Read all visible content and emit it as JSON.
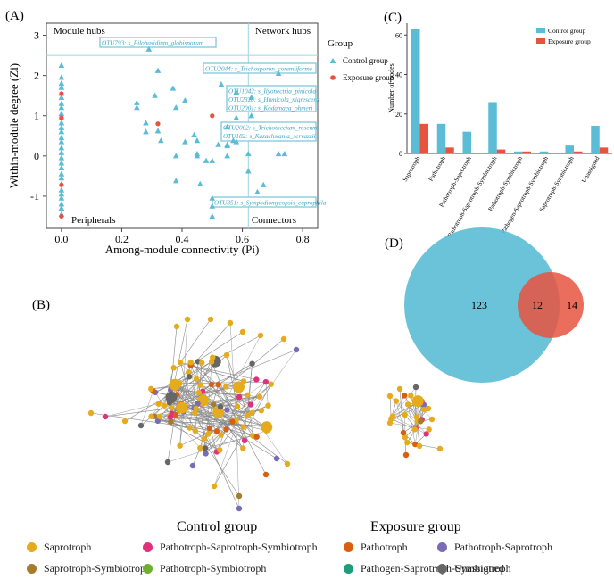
{
  "colors": {
    "control": "#5bbcd6",
    "exposure": "#e8533f",
    "frame": "#7fc8da",
    "saprotroph": "#e5ab1a",
    "pathotroph_saprotroph_symbiotroph": "#e0317c",
    "pathotroph": "#d95f0e",
    "pathotroph_saprotroph": "#7b6bb5",
    "saprotroph_symbiotroph": "#a67c2a",
    "pathotroph_symbiotroph": "#6fae2e",
    "pathogen_saprotroph_symbiotroph": "#1f9c7a",
    "unassigned": "#666666"
  },
  "panel_labels": {
    "a": "(A)",
    "b": "(B)",
    "c": "(C)",
    "d": "(D)"
  },
  "chart_data": [
    {
      "type": "scatter",
      "panel": "A",
      "xlabel": "Among-module connectivity (Pi)",
      "ylabel": "Within-module degree (Zi)",
      "xlim": [
        -0.05,
        0.85
      ],
      "ylim": [
        -1.8,
        3.3
      ],
      "xticks": [
        "0.0",
        "0.2",
        "0.4",
        "0.6",
        "0.8"
      ],
      "yticks": [
        "-1",
        "0",
        "1",
        "2",
        "3"
      ],
      "zi_threshold": 2.5,
      "pi_threshold": 0.62,
      "quadrant_labels": {
        "module_hubs": "Module hubs",
        "network_hubs": "Network hubs",
        "peripherals": "Peripherals",
        "connectors": "Connectors"
      },
      "legend_title": "Group",
      "legend_entries": [
        "Control group",
        "Exposure group"
      ],
      "annotations": [
        "OTU793: s_Filobasidium_globisporum",
        "OTU2044: s_Trichosporon_coremiiforme",
        "OTU1042: s_Ilyonectria_pinicola",
        "OTU2328: s_Humicola_nigrescens",
        "OTU2001: s_Kodamaea_ohmeri",
        "OTU2002: s_Trichothecium_roseum",
        "OTU182: s_Kazachstania_servazzii",
        "OTU851: s_Sympodiomycopsis_cuprophila"
      ],
      "series": [
        {
          "name": "Control group",
          "points": [
            [
              0,
              2.25
            ],
            [
              0,
              1.95
            ],
            [
              0,
              1.8
            ],
            [
              0,
              1.7
            ],
            [
              0,
              1.55
            ],
            [
              0,
              1.45
            ],
            [
              0,
              1.3
            ],
            [
              0,
              1.2
            ],
            [
              0,
              1.05
            ],
            [
              0,
              0.95
            ],
            [
              0,
              0.82
            ],
            [
              0,
              0.7
            ],
            [
              0,
              0.6
            ],
            [
              0,
              0.45
            ],
            [
              0,
              0.35
            ],
            [
              0,
              0.2
            ],
            [
              0,
              0.08
            ],
            [
              0,
              -0.05
            ],
            [
              0,
              -0.18
            ],
            [
              0,
              -0.3
            ],
            [
              0,
              -0.45
            ],
            [
              0,
              -0.55
            ],
            [
              0,
              -0.7
            ],
            [
              0,
              -0.85
            ],
            [
              0,
              -0.95
            ],
            [
              0,
              -1.05
            ],
            [
              0,
              -1.2
            ],
            [
              0,
              -1.3
            ],
            [
              0,
              -1.45
            ],
            [
              0.29,
              2.65
            ],
            [
              0.32,
              2.12
            ],
            [
              0.25,
              1.32
            ],
            [
              0.25,
              1.2
            ],
            [
              0.31,
              1.5
            ],
            [
              0.37,
              1.68
            ],
            [
              0.41,
              1.38
            ],
            [
              0.38,
              1.2
            ],
            [
              0.28,
              0.82
            ],
            [
              0.28,
              0.6
            ],
            [
              0.32,
              0.62
            ],
            [
              0.33,
              0.38
            ],
            [
              0.44,
              0.52
            ],
            [
              0.45,
              0.38
            ],
            [
              0.41,
              0.35
            ],
            [
              0.38,
              0.0
            ],
            [
              0.38,
              -0.62
            ],
            [
              0.46,
              -0.7
            ],
            [
              0.45,
              0.05
            ],
            [
              0.48,
              -0.12
            ],
            [
              0.5,
              -0.12
            ],
            [
              0.52,
              0.28
            ],
            [
              0.55,
              0.72
            ],
            [
              0.55,
              0.28
            ],
            [
              0.58,
              0.95
            ],
            [
              0.55,
              0.0
            ],
            [
              0.53,
              1.78
            ],
            [
              0.63,
              1.0
            ],
            [
              0.58,
              1.58
            ],
            [
              0.62,
              0.05
            ],
            [
              0.62,
              -0.38
            ],
            [
              0.67,
              -0.72
            ],
            [
              0.65,
              -0.9
            ],
            [
              0.72,
              0.05
            ],
            [
              0.74,
              0.05
            ],
            [
              0.72,
              2.05
            ],
            [
              0.5,
              -1.05
            ],
            [
              0.5,
              -1.25
            ],
            [
              0.5,
              -1.5
            ],
            [
              0.58,
              0.35
            ],
            [
              0.57,
              0.38
            ],
            [
              0.55,
              0.25
            ],
            [
              0.45,
              0.0
            ],
            [
              0.63,
              1.45
            ]
          ]
        },
        {
          "name": "Exposure group",
          "points": [
            [
              0,
              1.55
            ],
            [
              0,
              0.95
            ],
            [
              0,
              -0.72
            ],
            [
              0,
              -1.5
            ],
            [
              0.32,
              0.8
            ],
            [
              0.5,
              1.0
            ]
          ]
        }
      ]
    },
    {
      "type": "bar",
      "panel": "C",
      "ylabel": "Number of nodes",
      "ylim": [
        0,
        66
      ],
      "yticks": [
        "0",
        "20",
        "40",
        "60"
      ],
      "categories": [
        "Saprotroph",
        "Pathotroph",
        "Pathotroph-Saprotroph",
        "Pathotroph-Saprotroph-Symbiotroph",
        "Pathotroph-Symbiotroph",
        "Pathogen-Saprotroph-Symbiotroph",
        "Saprotroph-Symbiotroph",
        "Unassigned"
      ],
      "series": [
        {
          "name": "Control group",
          "values": [
            63,
            15,
            11,
            26,
            1,
            1,
            4,
            14
          ]
        },
        {
          "name": "Exposure group",
          "values": [
            15,
            3,
            0,
            2,
            1,
            0,
            1,
            3
          ]
        }
      ],
      "legend_entries": [
        "Control group",
        "Exposure group"
      ]
    },
    {
      "type": "venn",
      "panel": "D",
      "sets": [
        {
          "name": "Control group",
          "only": 123
        },
        {
          "name": "Exposure group",
          "only": 14
        }
      ],
      "intersection": 12,
      "labels": [
        "123",
        "12",
        "14"
      ]
    }
  ],
  "network": {
    "panel": "B",
    "control_label": "Control group",
    "exposure_label": "Exposure group",
    "legend": [
      {
        "key": "saprotroph",
        "label": "Saprotroph"
      },
      {
        "key": "pathotroph_saprotroph_symbiotroph",
        "label": "Pathotroph-Saprotroph-Symbiotroph"
      },
      {
        "key": "pathotroph",
        "label": "Pathotroph"
      },
      {
        "key": "pathotroph_saprotroph",
        "label": "Pathotroph-Saprotroph"
      },
      {
        "key": "saprotroph_symbiotroph",
        "label": "Saprotroph-Symbiotroph"
      },
      {
        "key": "pathotroph_symbiotroph",
        "label": "Pathotroph-Symbiotroph"
      },
      {
        "key": "pathogen_saprotroph_symbiotroph",
        "label": "Pathogen-Saprotroph-Symbiotroph"
      },
      {
        "key": "unassigned",
        "label": "Unassigned"
      }
    ]
  }
}
